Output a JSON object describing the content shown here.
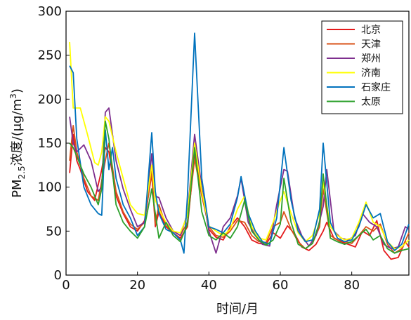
{
  "chart_data": {
    "type": "line",
    "xlabel": "时间/月",
    "ylabel": {
      "prefix": "PM",
      "sub": "2.5",
      "mid": "浓度/(μg/m",
      "sup": "3",
      "suffix": ")"
    },
    "xlim": [
      0,
      96
    ],
    "ylim": [
      0,
      300
    ],
    "xticks": [
      0,
      20,
      40,
      60,
      80
    ],
    "yticks": [
      0,
      50,
      100,
      150,
      200,
      250,
      300
    ],
    "grid": false,
    "legend_position": "top-right",
    "series": [
      {
        "name": "北京",
        "color": "#e41a1c",
        "points": [
          [
            1,
            116
          ],
          [
            2,
            160
          ],
          [
            3,
            130
          ],
          [
            4,
            120
          ],
          [
            6,
            95
          ],
          [
            8,
            85
          ],
          [
            10,
            120
          ],
          [
            11,
            145
          ],
          [
            12,
            140
          ],
          [
            14,
            90
          ],
          [
            16,
            70
          ],
          [
            18,
            55
          ],
          [
            20,
            50
          ],
          [
            22,
            62
          ],
          [
            24,
            115
          ],
          [
            25,
            55
          ],
          [
            26,
            72
          ],
          [
            28,
            55
          ],
          [
            30,
            48
          ],
          [
            32,
            42
          ],
          [
            34,
            55
          ],
          [
            36,
            138
          ],
          [
            38,
            95
          ],
          [
            40,
            52
          ],
          [
            42,
            43
          ],
          [
            44,
            40
          ],
          [
            46,
            55
          ],
          [
            48,
            65
          ],
          [
            50,
            55
          ],
          [
            52,
            40
          ],
          [
            54,
            36
          ],
          [
            56,
            35
          ],
          [
            58,
            48
          ],
          [
            60,
            42
          ],
          [
            62,
            56
          ],
          [
            64,
            47
          ],
          [
            66,
            32
          ],
          [
            68,
            28
          ],
          [
            70,
            35
          ],
          [
            72,
            50
          ],
          [
            73,
            60
          ],
          [
            75,
            42
          ],
          [
            77,
            38
          ],
          [
            79,
            35
          ],
          [
            81,
            32
          ],
          [
            83,
            50
          ],
          [
            85,
            45
          ],
          [
            87,
            62
          ],
          [
            89,
            28
          ],
          [
            91,
            18
          ],
          [
            93,
            20
          ],
          [
            95,
            38
          ],
          [
            96,
            32
          ]
        ]
      },
      {
        "name": "天津",
        "color": "#d95319",
        "points": [
          [
            1,
            130
          ],
          [
            2,
            170
          ],
          [
            3,
            140
          ],
          [
            5,
            110
          ],
          [
            7,
            90
          ],
          [
            9,
            85
          ],
          [
            11,
            130
          ],
          [
            12,
            150
          ],
          [
            14,
            95
          ],
          [
            16,
            72
          ],
          [
            18,
            58
          ],
          [
            20,
            52
          ],
          [
            22,
            60
          ],
          [
            24,
            118
          ],
          [
            25,
            58
          ],
          [
            26,
            80
          ],
          [
            28,
            56
          ],
          [
            30,
            50
          ],
          [
            32,
            45
          ],
          [
            34,
            60
          ],
          [
            36,
            132
          ],
          [
            38,
            90
          ],
          [
            40,
            55
          ],
          [
            42,
            45
          ],
          [
            44,
            43
          ],
          [
            46,
            50
          ],
          [
            48,
            62
          ],
          [
            50,
            60
          ],
          [
            52,
            45
          ],
          [
            54,
            38
          ],
          [
            56,
            37
          ],
          [
            58,
            55
          ],
          [
            60,
            60
          ],
          [
            61,
            72
          ],
          [
            63,
            52
          ],
          [
            65,
            38
          ],
          [
            67,
            30
          ],
          [
            69,
            36
          ],
          [
            71,
            55
          ],
          [
            72,
            98
          ],
          [
            74,
            45
          ],
          [
            76,
            40
          ],
          [
            78,
            38
          ],
          [
            80,
            36
          ],
          [
            82,
            45
          ],
          [
            84,
            55
          ],
          [
            86,
            50
          ],
          [
            88,
            58
          ],
          [
            90,
            35
          ],
          [
            92,
            25
          ],
          [
            94,
            30
          ],
          [
            96,
            48
          ]
        ]
      },
      {
        "name": "郑州",
        "color": "#7e2f8e",
        "points": [
          [
            1,
            180
          ],
          [
            2,
            150
          ],
          [
            3,
            140
          ],
          [
            5,
            148
          ],
          [
            7,
            130
          ],
          [
            9,
            95
          ],
          [
            10,
            100
          ],
          [
            11,
            185
          ],
          [
            12,
            190
          ],
          [
            14,
            130
          ],
          [
            16,
            98
          ],
          [
            18,
            75
          ],
          [
            20,
            55
          ],
          [
            22,
            60
          ],
          [
            24,
            138
          ],
          [
            25,
            90
          ],
          [
            26,
            88
          ],
          [
            28,
            65
          ],
          [
            30,
            50
          ],
          [
            32,
            45
          ],
          [
            34,
            70
          ],
          [
            36,
            160
          ],
          [
            38,
            100
          ],
          [
            40,
            50
          ],
          [
            42,
            25
          ],
          [
            44,
            55
          ],
          [
            46,
            65
          ],
          [
            48,
            90
          ],
          [
            49,
            110
          ],
          [
            51,
            60
          ],
          [
            53,
            45
          ],
          [
            55,
            35
          ],
          [
            57,
            33
          ],
          [
            59,
            80
          ],
          [
            61,
            120
          ],
          [
            62,
            118
          ],
          [
            64,
            65
          ],
          [
            66,
            45
          ],
          [
            68,
            33
          ],
          [
            70,
            45
          ],
          [
            72,
            78
          ],
          [
            73,
            120
          ],
          [
            75,
            50
          ],
          [
            77,
            42
          ],
          [
            79,
            40
          ],
          [
            81,
            45
          ],
          [
            83,
            70
          ],
          [
            85,
            60
          ],
          [
            87,
            55
          ],
          [
            89,
            35
          ],
          [
            91,
            30
          ],
          [
            93,
            32
          ],
          [
            95,
            55
          ],
          [
            96,
            52
          ]
        ]
      },
      {
        "name": "济南",
        "color": "#ffff00",
        "points": [
          [
            1,
            265
          ],
          [
            2,
            190
          ],
          [
            4,
            190
          ],
          [
            6,
            160
          ],
          [
            8,
            128
          ],
          [
            9,
            125
          ],
          [
            10,
            140
          ],
          [
            11,
            180
          ],
          [
            12,
            175
          ],
          [
            14,
            140
          ],
          [
            16,
            110
          ],
          [
            18,
            80
          ],
          [
            20,
            70
          ],
          [
            22,
            68
          ],
          [
            24,
            125
          ],
          [
            25,
            85
          ],
          [
            26,
            75
          ],
          [
            28,
            60
          ],
          [
            30,
            50
          ],
          [
            32,
            48
          ],
          [
            34,
            68
          ],
          [
            36,
            150
          ],
          [
            38,
            95
          ],
          [
            40,
            56
          ],
          [
            42,
            50
          ],
          [
            44,
            45
          ],
          [
            46,
            52
          ],
          [
            48,
            75
          ],
          [
            50,
            90
          ],
          [
            52,
            55
          ],
          [
            54,
            42
          ],
          [
            56,
            40
          ],
          [
            58,
            60
          ],
          [
            60,
            85
          ],
          [
            61,
            95
          ],
          [
            63,
            70
          ],
          [
            65,
            48
          ],
          [
            67,
            38
          ],
          [
            69,
            45
          ],
          [
            71,
            70
          ],
          [
            72,
            105
          ],
          [
            74,
            55
          ],
          [
            76,
            45
          ],
          [
            78,
            40
          ],
          [
            80,
            42
          ],
          [
            82,
            60
          ],
          [
            84,
            83
          ],
          [
            86,
            60
          ],
          [
            88,
            55
          ],
          [
            90,
            38
          ],
          [
            92,
            30
          ],
          [
            94,
            32
          ],
          [
            96,
            40
          ]
        ]
      },
      {
        "name": "石家庄",
        "color": "#0072bd",
        "points": [
          [
            1,
            238
          ],
          [
            2,
            230
          ],
          [
            3,
            155
          ],
          [
            5,
            100
          ],
          [
            7,
            80
          ],
          [
            9,
            70
          ],
          [
            10,
            68
          ],
          [
            11,
            165
          ],
          [
            12,
            120
          ],
          [
            13,
            145
          ],
          [
            14,
            110
          ],
          [
            16,
            80
          ],
          [
            18,
            65
          ],
          [
            20,
            45
          ],
          [
            22,
            55
          ],
          [
            24,
            162
          ],
          [
            25,
            95
          ],
          [
            26,
            70
          ],
          [
            28,
            52
          ],
          [
            30,
            48
          ],
          [
            32,
            40
          ],
          [
            33,
            25
          ],
          [
            34,
            90
          ],
          [
            36,
            275
          ],
          [
            38,
            110
          ],
          [
            40,
            55
          ],
          [
            42,
            52
          ],
          [
            44,
            48
          ],
          [
            46,
            58
          ],
          [
            48,
            88
          ],
          [
            49,
            112
          ],
          [
            51,
            70
          ],
          [
            53,
            50
          ],
          [
            55,
            38
          ],
          [
            57,
            35
          ],
          [
            59,
            65
          ],
          [
            61,
            145
          ],
          [
            63,
            85
          ],
          [
            65,
            50
          ],
          [
            67,
            38
          ],
          [
            69,
            40
          ],
          [
            71,
            75
          ],
          [
            72,
            150
          ],
          [
            74,
            60
          ],
          [
            76,
            42
          ],
          [
            78,
            38
          ],
          [
            80,
            40
          ],
          [
            82,
            55
          ],
          [
            84,
            80
          ],
          [
            86,
            65
          ],
          [
            88,
            70
          ],
          [
            90,
            38
          ],
          [
            92,
            28
          ],
          [
            94,
            35
          ],
          [
            96,
            58
          ]
        ]
      },
      {
        "name": "太原",
        "color": "#2ca02c",
        "points": [
          [
            1,
            150
          ],
          [
            2,
            145
          ],
          [
            3,
            135
          ],
          [
            5,
            115
          ],
          [
            7,
            100
          ],
          [
            9,
            80
          ],
          [
            10,
            98
          ],
          [
            11,
            175
          ],
          [
            12,
            155
          ],
          [
            14,
            80
          ],
          [
            16,
            60
          ],
          [
            18,
            50
          ],
          [
            20,
            42
          ],
          [
            22,
            55
          ],
          [
            24,
            98
          ],
          [
            25,
            70
          ],
          [
            26,
            42
          ],
          [
            28,
            60
          ],
          [
            30,
            45
          ],
          [
            32,
            38
          ],
          [
            34,
            58
          ],
          [
            36,
            145
          ],
          [
            38,
            72
          ],
          [
            40,
            45
          ],
          [
            42,
            40
          ],
          [
            44,
            48
          ],
          [
            46,
            42
          ],
          [
            48,
            55
          ],
          [
            50,
            85
          ],
          [
            52,
            50
          ],
          [
            54,
            40
          ],
          [
            56,
            34
          ],
          [
            58,
            40
          ],
          [
            60,
            58
          ],
          [
            61,
            110
          ],
          [
            63,
            60
          ],
          [
            65,
            35
          ],
          [
            67,
            30
          ],
          [
            69,
            36
          ],
          [
            71,
            60
          ],
          [
            72,
            115
          ],
          [
            74,
            42
          ],
          [
            76,
            38
          ],
          [
            78,
            35
          ],
          [
            80,
            38
          ],
          [
            82,
            45
          ],
          [
            84,
            52
          ],
          [
            86,
            40
          ],
          [
            88,
            45
          ],
          [
            90,
            30
          ],
          [
            92,
            25
          ],
          [
            94,
            28
          ],
          [
            96,
            30
          ]
        ]
      }
    ]
  }
}
